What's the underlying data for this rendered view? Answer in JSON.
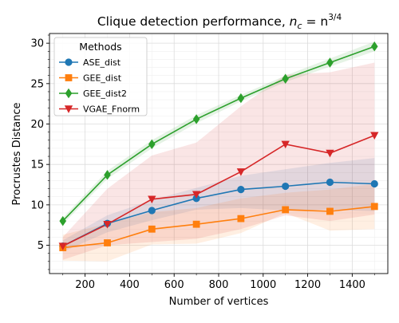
{
  "chart_data": {
    "type": "line",
    "title": "Clique detection performance, ",
    "title_math": {
      "base": "n",
      "base_sub": "c",
      "eq": " = n",
      "sup": "3/4"
    },
    "xlabel": "Number of vertices",
    "ylabel": "Procrustes Distance",
    "xlim": [
      40,
      1560
    ],
    "ylim": [
      1.5,
      31.2
    ],
    "xticks": [
      200,
      400,
      600,
      800,
      1000,
      1200,
      1400
    ],
    "yticks": [
      5,
      10,
      15,
      20,
      25,
      30
    ],
    "grid": true,
    "legend": {
      "title": "Methods",
      "position": "top-left"
    },
    "x": [
      100,
      300,
      500,
      700,
      900,
      1100,
      1300,
      1500
    ],
    "series": [
      {
        "name": "ASE_dist",
        "color": "#1f77b4",
        "marker": "circle",
        "values": [
          4.9,
          7.7,
          9.3,
          10.8,
          11.9,
          12.3,
          12.8,
          12.6
        ],
        "lower": [
          4.2,
          6.6,
          8.1,
          9.4,
          9.6,
          9.3,
          9.4,
          9.2
        ],
        "upper": [
          5.6,
          8.7,
          10.6,
          12.1,
          13.6,
          14.4,
          15.2,
          15.8
        ]
      },
      {
        "name": "GEE_dist",
        "color": "#ff7f0e",
        "marker": "square",
        "values": [
          4.7,
          5.3,
          7.0,
          7.6,
          8.3,
          9.4,
          9.2,
          9.8
        ],
        "lower": [
          3.1,
          3.0,
          5.1,
          5.2,
          6.5,
          9.0,
          6.8,
          7.0
        ],
        "upper": [
          6.3,
          7.7,
          9.1,
          9.6,
          10.8,
          11.5,
          11.9,
          12.6
        ]
      },
      {
        "name": "GEE_dist2",
        "color": "#2ca02c",
        "marker": "diamond",
        "values": [
          8.0,
          13.7,
          17.5,
          20.6,
          23.2,
          25.6,
          27.6,
          29.6
        ],
        "lower": [
          7.6,
          13.2,
          17.0,
          20.1,
          22.8,
          25.2,
          27.1,
          29.0
        ],
        "upper": [
          8.4,
          14.2,
          18.0,
          21.1,
          23.6,
          26.0,
          28.1,
          30.2
        ]
      },
      {
        "name": "VGAE_Fnorm",
        "color": "#d62728",
        "marker": "triangle-down",
        "values": [
          4.9,
          7.6,
          10.7,
          11.3,
          14.1,
          17.5,
          16.4,
          18.6
        ],
        "lower": [
          3.2,
          5.0,
          5.4,
          5.8,
          7.0,
          8.7,
          8.0,
          8.8
        ],
        "upper": [
          6.0,
          12.0,
          16.1,
          17.7,
          22.2,
          26.1,
          26.4,
          27.6
        ]
      }
    ]
  }
}
